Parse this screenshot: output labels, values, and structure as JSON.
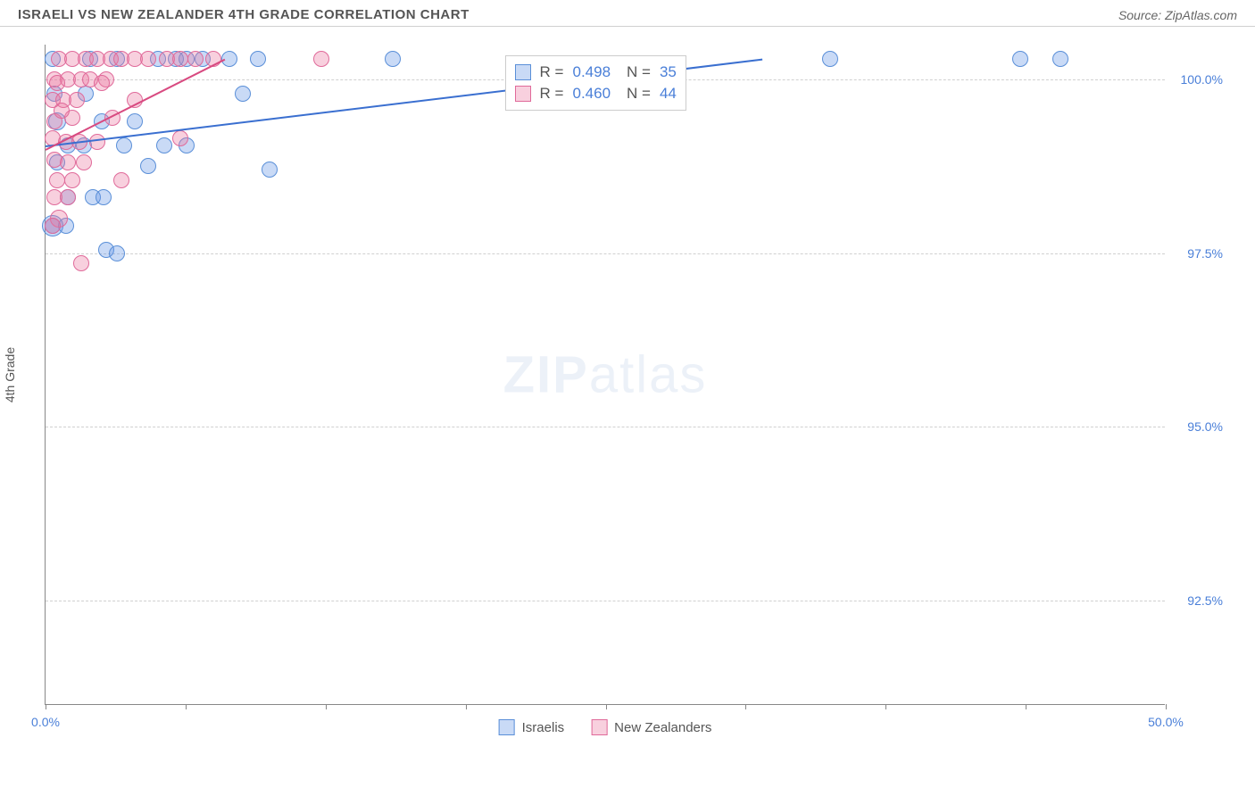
{
  "header": {
    "title": "ISRAELI VS NEW ZEALANDER 4TH GRADE CORRELATION CHART",
    "source": "Source: ZipAtlas.com"
  },
  "chart": {
    "type": "scatter",
    "ylabel": "4th Grade",
    "watermark_bold": "ZIP",
    "watermark_light": "atlas",
    "xlim": [
      0,
      50
    ],
    "ylim": [
      91,
      100.5
    ],
    "background_color": "#ffffff",
    "grid_color": "#d0d0d0",
    "yticks": [
      {
        "value": 100.0,
        "label": "100.0%"
      },
      {
        "value": 97.5,
        "label": "97.5%"
      },
      {
        "value": 95.0,
        "label": "95.0%"
      },
      {
        "value": 92.5,
        "label": "92.5%"
      }
    ],
    "xticks": [
      0,
      6.25,
      12.5,
      18.75,
      25,
      31.25,
      37.5,
      43.75,
      50
    ],
    "xaxis_labels": [
      {
        "value": 0,
        "label": "0.0%"
      },
      {
        "value": 50,
        "label": "50.0%"
      }
    ],
    "series": [
      {
        "name": "Israelis",
        "fill": "rgba(100,150,230,0.35)",
        "stroke": "#5a8fd8",
        "legend_fill": "rgba(100,150,230,0.35)",
        "legend_stroke": "#5a8fd8",
        "trend_color": "#3a6fd0",
        "R_label": "R =",
        "R": "0.498",
        "N_label": "N =",
        "N": "35",
        "trend": {
          "x1": 0,
          "y1": 99.05,
          "x2": 32,
          "y2": 100.3
        },
        "points": [
          {
            "x": 0.3,
            "y": 100.3,
            "r": 9
          },
          {
            "x": 2.0,
            "y": 100.3,
            "r": 9
          },
          {
            "x": 3.2,
            "y": 100.3,
            "r": 9
          },
          {
            "x": 5.0,
            "y": 100.3,
            "r": 9
          },
          {
            "x": 5.8,
            "y": 100.3,
            "r": 9
          },
          {
            "x": 6.3,
            "y": 100.3,
            "r": 9
          },
          {
            "x": 7.0,
            "y": 100.3,
            "r": 9
          },
          {
            "x": 8.2,
            "y": 100.3,
            "r": 9
          },
          {
            "x": 9.5,
            "y": 100.3,
            "r": 9
          },
          {
            "x": 15.5,
            "y": 100.3,
            "r": 9
          },
          {
            "x": 35.0,
            "y": 100.3,
            "r": 9
          },
          {
            "x": 43.5,
            "y": 100.3,
            "r": 9
          },
          {
            "x": 45.3,
            "y": 100.3,
            "r": 9
          },
          {
            "x": 0.4,
            "y": 99.8,
            "r": 9
          },
          {
            "x": 1.8,
            "y": 99.8,
            "r": 9
          },
          {
            "x": 8.8,
            "y": 99.8,
            "r": 9
          },
          {
            "x": 0.5,
            "y": 99.4,
            "r": 10
          },
          {
            "x": 2.5,
            "y": 99.4,
            "r": 9
          },
          {
            "x": 4.0,
            "y": 99.4,
            "r": 9
          },
          {
            "x": 1.0,
            "y": 99.05,
            "r": 9
          },
          {
            "x": 1.7,
            "y": 99.05,
            "r": 9
          },
          {
            "x": 3.5,
            "y": 99.05,
            "r": 9
          },
          {
            "x": 5.3,
            "y": 99.05,
            "r": 9
          },
          {
            "x": 6.3,
            "y": 99.05,
            "r": 9
          },
          {
            "x": 0.5,
            "y": 98.8,
            "r": 9
          },
          {
            "x": 4.6,
            "y": 98.75,
            "r": 9
          },
          {
            "x": 10.0,
            "y": 98.7,
            "r": 9
          },
          {
            "x": 1.0,
            "y": 98.3,
            "r": 9
          },
          {
            "x": 2.1,
            "y": 98.3,
            "r": 9
          },
          {
            "x": 2.6,
            "y": 98.3,
            "r": 9
          },
          {
            "x": 0.3,
            "y": 97.9,
            "r": 12
          },
          {
            "x": 0.9,
            "y": 97.9,
            "r": 9
          },
          {
            "x": 2.7,
            "y": 97.55,
            "r": 9
          },
          {
            "x": 3.2,
            "y": 97.5,
            "r": 9
          },
          {
            "x": 0.3,
            "y": 97.9,
            "r": 9
          }
        ]
      },
      {
        "name": "New Zealanders",
        "fill": "rgba(235,120,160,0.35)",
        "stroke": "#e06a9a",
        "legend_fill": "rgba(235,120,160,0.35)",
        "legend_stroke": "#e06a9a",
        "trend_color": "#d84a80",
        "R_label": "R =",
        "R": "0.460",
        "N_label": "N =",
        "N": "44",
        "trend": {
          "x1": 0,
          "y1": 99.0,
          "x2": 8.0,
          "y2": 100.3
        },
        "points": [
          {
            "x": 0.6,
            "y": 100.3,
            "r": 9
          },
          {
            "x": 1.2,
            "y": 100.3,
            "r": 9
          },
          {
            "x": 1.8,
            "y": 100.3,
            "r": 9
          },
          {
            "x": 2.3,
            "y": 100.3,
            "r": 9
          },
          {
            "x": 2.9,
            "y": 100.3,
            "r": 9
          },
          {
            "x": 3.4,
            "y": 100.3,
            "r": 9
          },
          {
            "x": 4.0,
            "y": 100.3,
            "r": 9
          },
          {
            "x": 4.6,
            "y": 100.3,
            "r": 9
          },
          {
            "x": 5.4,
            "y": 100.3,
            "r": 9
          },
          {
            "x": 6.0,
            "y": 100.3,
            "r": 9
          },
          {
            "x": 6.7,
            "y": 100.3,
            "r": 9
          },
          {
            "x": 7.5,
            "y": 100.3,
            "r": 9
          },
          {
            "x": 12.3,
            "y": 100.3,
            "r": 9
          },
          {
            "x": 0.4,
            "y": 100.0,
            "r": 9
          },
          {
            "x": 1.0,
            "y": 100.0,
            "r": 9
          },
          {
            "x": 1.6,
            "y": 100.0,
            "r": 9
          },
          {
            "x": 2.0,
            "y": 100.0,
            "r": 9
          },
          {
            "x": 2.7,
            "y": 100.0,
            "r": 9
          },
          {
            "x": 0.3,
            "y": 99.7,
            "r": 9
          },
          {
            "x": 0.8,
            "y": 99.7,
            "r": 9
          },
          {
            "x": 1.4,
            "y": 99.7,
            "r": 9
          },
          {
            "x": 0.4,
            "y": 99.4,
            "r": 9
          },
          {
            "x": 1.2,
            "y": 99.45,
            "r": 9
          },
          {
            "x": 3.0,
            "y": 99.45,
            "r": 9
          },
          {
            "x": 0.3,
            "y": 99.15,
            "r": 9
          },
          {
            "x": 0.9,
            "y": 99.1,
            "r": 9
          },
          {
            "x": 1.5,
            "y": 99.1,
            "r": 9
          },
          {
            "x": 2.3,
            "y": 99.1,
            "r": 9
          },
          {
            "x": 6.0,
            "y": 99.15,
            "r": 9
          },
          {
            "x": 0.4,
            "y": 98.85,
            "r": 9
          },
          {
            "x": 1.0,
            "y": 98.8,
            "r": 9
          },
          {
            "x": 1.7,
            "y": 98.8,
            "r": 9
          },
          {
            "x": 0.5,
            "y": 98.55,
            "r": 9
          },
          {
            "x": 1.2,
            "y": 98.55,
            "r": 9
          },
          {
            "x": 3.4,
            "y": 98.55,
            "r": 9
          },
          {
            "x": 0.4,
            "y": 98.3,
            "r": 9
          },
          {
            "x": 1.0,
            "y": 98.3,
            "r": 9
          },
          {
            "x": 0.6,
            "y": 98.0,
            "r": 10
          },
          {
            "x": 0.3,
            "y": 97.9,
            "r": 9
          },
          {
            "x": 1.6,
            "y": 97.35,
            "r": 9
          },
          {
            "x": 0.5,
            "y": 99.95,
            "r": 9
          },
          {
            "x": 2.5,
            "y": 99.95,
            "r": 9
          },
          {
            "x": 0.7,
            "y": 99.55,
            "r": 9
          },
          {
            "x": 4.0,
            "y": 99.7,
            "r": 9
          }
        ]
      }
    ]
  },
  "legend": {
    "israelis": "Israelis",
    "newzealanders": "New Zealanders"
  }
}
